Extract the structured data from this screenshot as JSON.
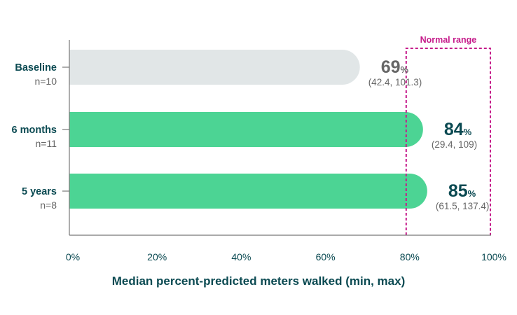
{
  "chart_data": {
    "type": "bar",
    "orientation": "horizontal",
    "categories": [
      "Baseline",
      "6 months",
      "5 years"
    ],
    "sample_sizes": [
      "n=10",
      "n=11",
      "n=8"
    ],
    "values": [
      69,
      84,
      85
    ],
    "value_unit": "%",
    "ranges": [
      "(42.4, 101.3)",
      "(29.4, 109)",
      "(61.5, 137.4)"
    ],
    "bar_colors": [
      "#e1e6e7",
      "#4cd494",
      "#4cd494"
    ],
    "value_colors": [
      "#666666",
      "#0b4a52",
      "#0b4a52"
    ],
    "xlim": [
      0,
      100
    ],
    "xticks": [
      0,
      20,
      40,
      60,
      80,
      100
    ],
    "xtick_labels": [
      "0%",
      "20%",
      "40%",
      "60%",
      "80%",
      "100%"
    ],
    "xlabel": "Median percent-predicted meters walked (min, max)",
    "ylabel": "",
    "grid": false,
    "annotation": {
      "label": "Normal range",
      "from": 80,
      "to": 100,
      "color": "#c51b8a"
    }
  }
}
